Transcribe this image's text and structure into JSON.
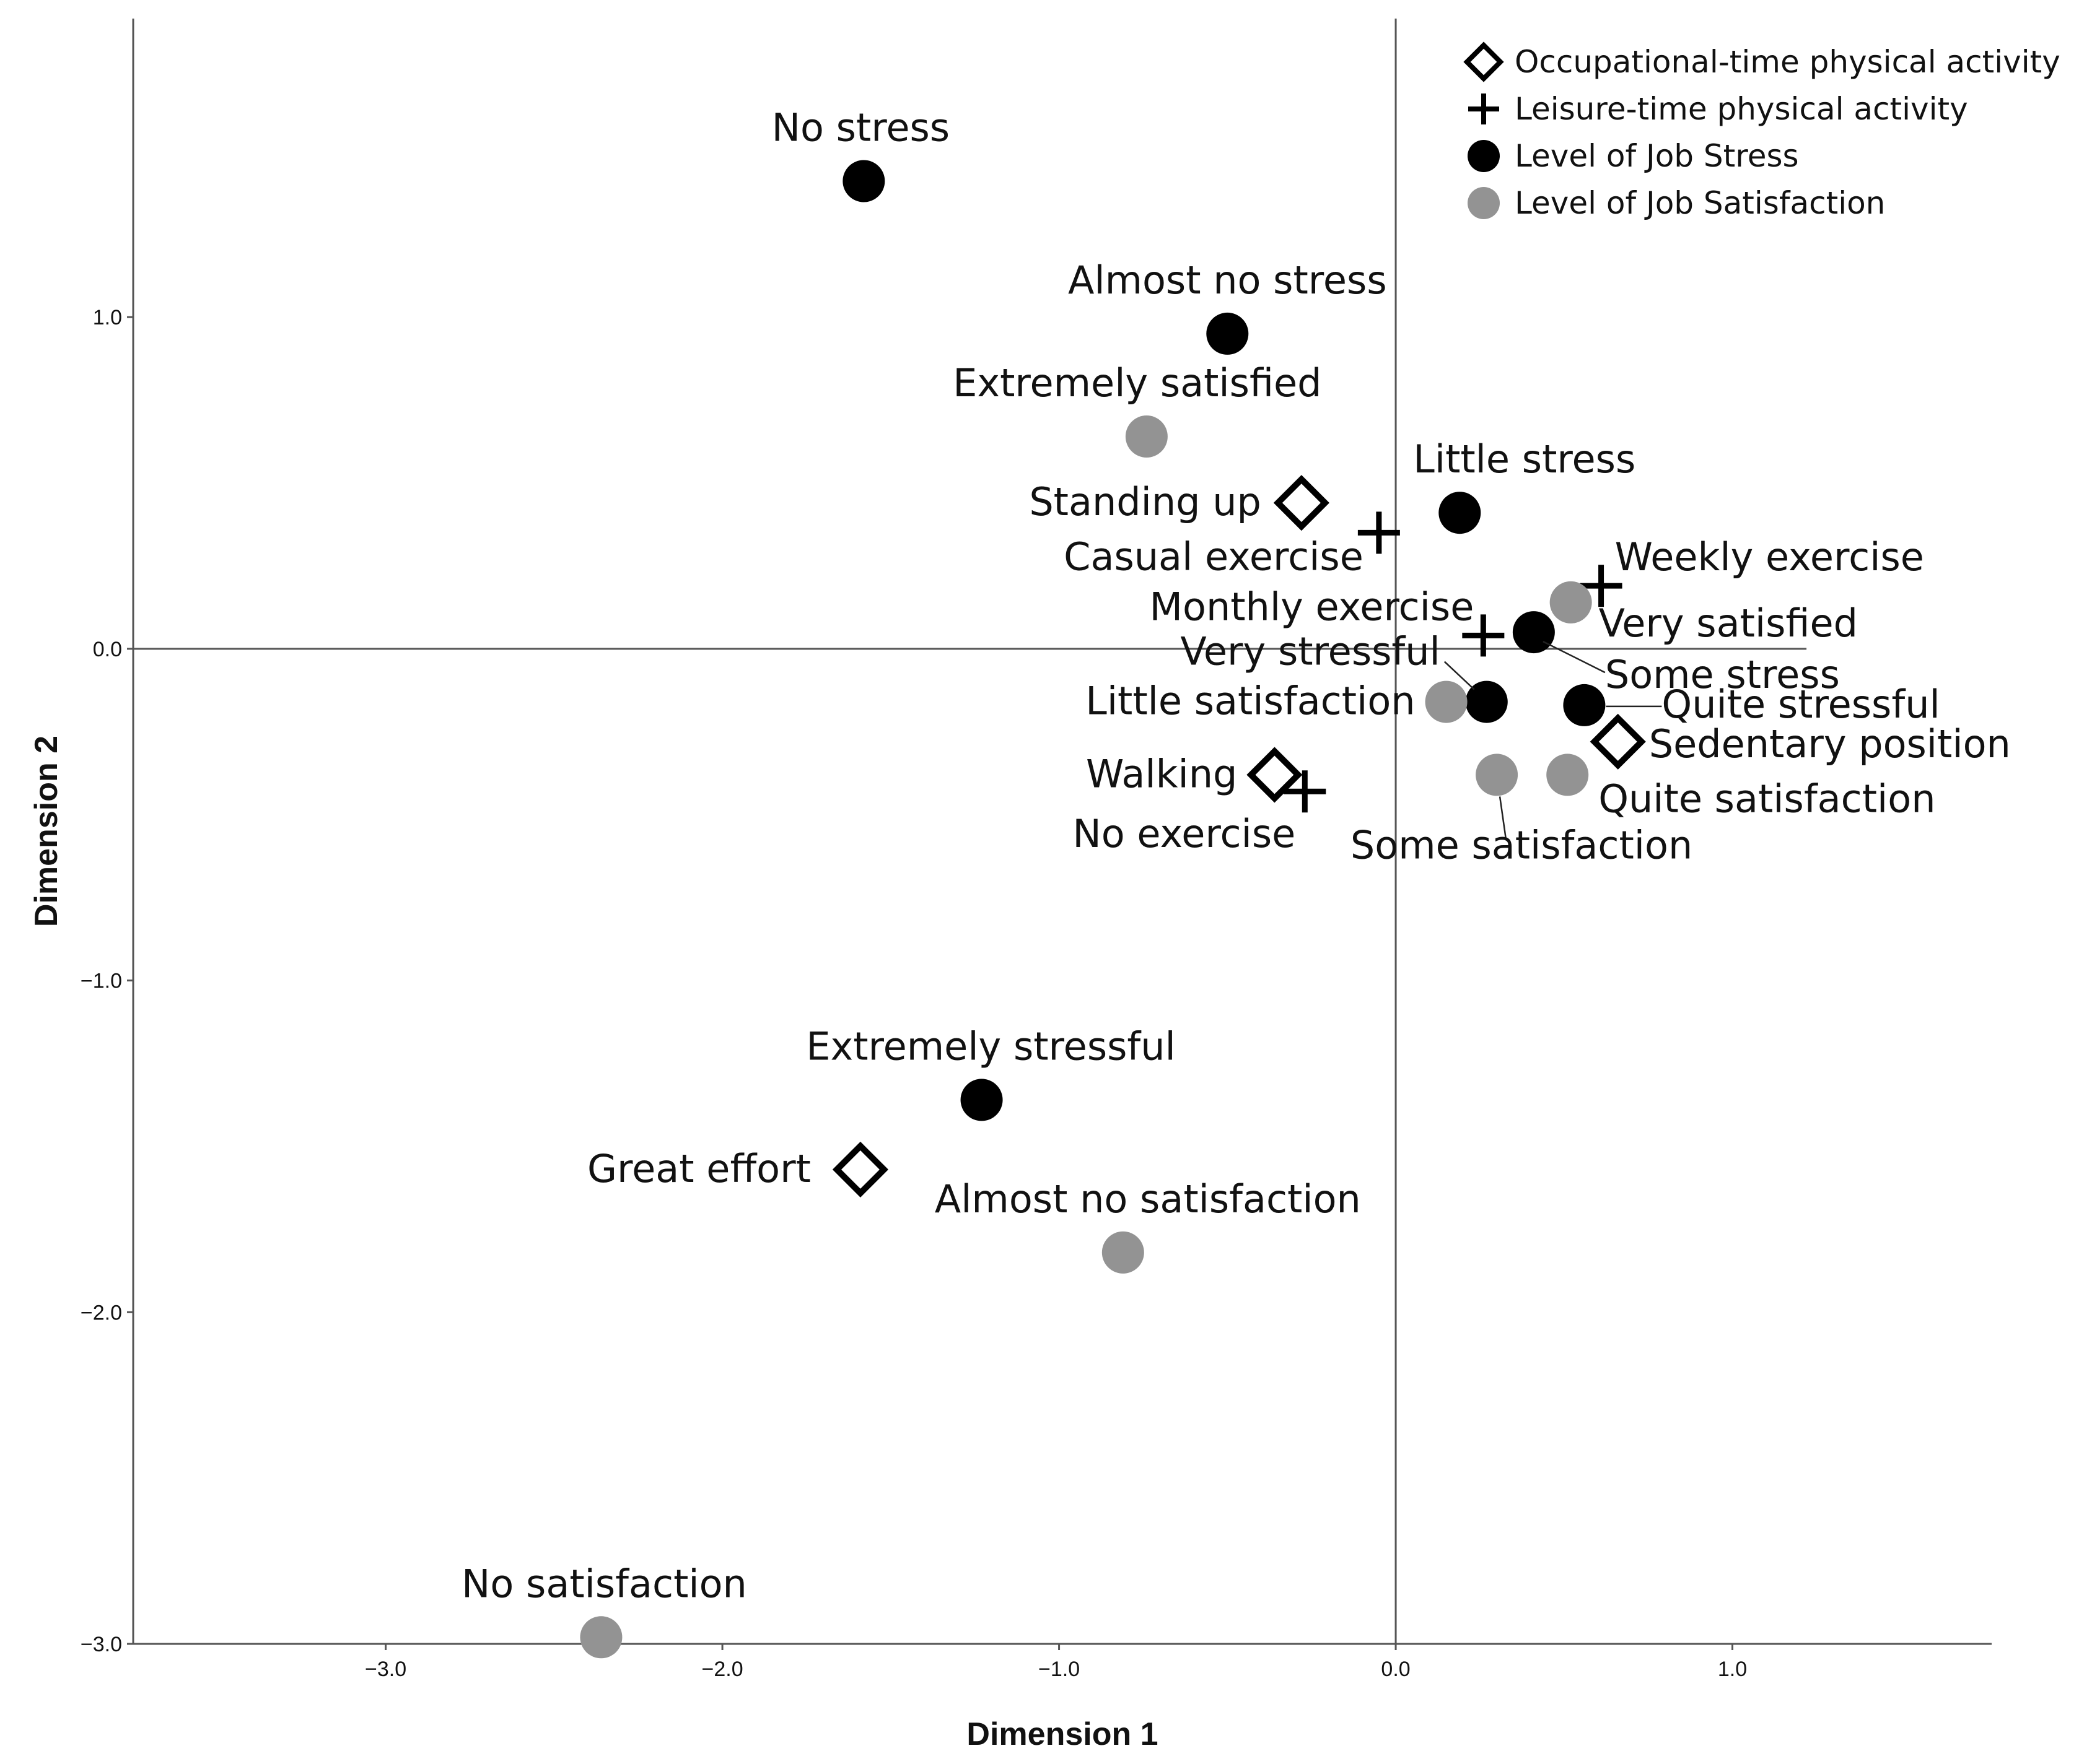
{
  "chart_data": {
    "type": "scatter",
    "title": "",
    "xlabel": "Dimension 1",
    "ylabel": "Dimension 2",
    "xlim": [
      -3.75,
      1.77
    ],
    "ylim": [
      -3.0,
      1.9
    ],
    "x_ticks": [
      {
        "value": -3.0,
        "label": "−3.0"
      },
      {
        "value": -2.0,
        "label": "−2.0"
      },
      {
        "value": -1.0,
        "label": "−1.0"
      },
      {
        "value": 0.0,
        "label": "0.0"
      },
      {
        "value": 1.0,
        "label": "1.0"
      }
    ],
    "y_ticks": [
      {
        "value": 1.0,
        "label": "1.0"
      },
      {
        "value": 0.0,
        "label": "0.0"
      },
      {
        "value": -1.0,
        "label": "−1.0"
      },
      {
        "value": -2.0,
        "label": "−2.0"
      },
      {
        "value": -3.0,
        "label": "−3.0"
      }
    ],
    "legend_position": "top-right",
    "series": [
      {
        "name": "Occupational-time physical activity",
        "marker": "diamond",
        "color": "#000000",
        "points": [
          {
            "label": "Standing up",
            "x": -0.28,
            "y": 0.44
          },
          {
            "label": "Walking",
            "x": -0.36,
            "y": -0.38
          },
          {
            "label": "Sedentary position",
            "x": 0.66,
            "y": -0.28
          },
          {
            "label": "Great effort",
            "x": -1.59,
            "y": -1.57
          }
        ]
      },
      {
        "name": "Leisure-time physical activity",
        "marker": "plus",
        "color": "#000000",
        "points": [
          {
            "label": "Casual exercise",
            "x": -0.05,
            "y": 0.35
          },
          {
            "label": "Weekly exercise",
            "x": 0.61,
            "y": 0.19
          },
          {
            "label": "Monthly exercise",
            "x": 0.26,
            "y": 0.04
          },
          {
            "label": "No exercise",
            "x": -0.27,
            "y": -0.43
          }
        ]
      },
      {
        "name": "Level of Job Stress",
        "marker": "circle",
        "color": "#000000",
        "points": [
          {
            "label": "No stress",
            "x": -1.58,
            "y": 1.41
          },
          {
            "label": "Almost no stress",
            "x": -0.5,
            "y": 0.95
          },
          {
            "label": "Little stress",
            "x": 0.19,
            "y": 0.41
          },
          {
            "label": "Some stress",
            "x": 0.41,
            "y": 0.05
          },
          {
            "label": "Very stressful",
            "x": 0.27,
            "y": -0.16
          },
          {
            "label": "Quite stressful",
            "x": 0.56,
            "y": -0.17
          },
          {
            "label": "Extremely stressful",
            "x": -1.23,
            "y": -1.36
          }
        ]
      },
      {
        "name": "Level of Job Satisfaction",
        "marker": "circle",
        "color": "#939393",
        "points": [
          {
            "label": "Extremely satisfied",
            "x": -0.74,
            "y": 0.64
          },
          {
            "label": "Very satisfied",
            "x": 0.52,
            "y": 0.14
          },
          {
            "label": "Little satisfaction",
            "x": 0.15,
            "y": -0.16
          },
          {
            "label": "Some satisfaction",
            "x": 0.3,
            "y": -0.38
          },
          {
            "label": "Quite satisfaction",
            "x": 0.51,
            "y": -0.38
          },
          {
            "label": "Almost no satisfaction",
            "x": -0.81,
            "y": -1.82
          },
          {
            "label": "No satisfaction",
            "x": -2.36,
            "y": -2.98
          }
        ]
      }
    ]
  }
}
